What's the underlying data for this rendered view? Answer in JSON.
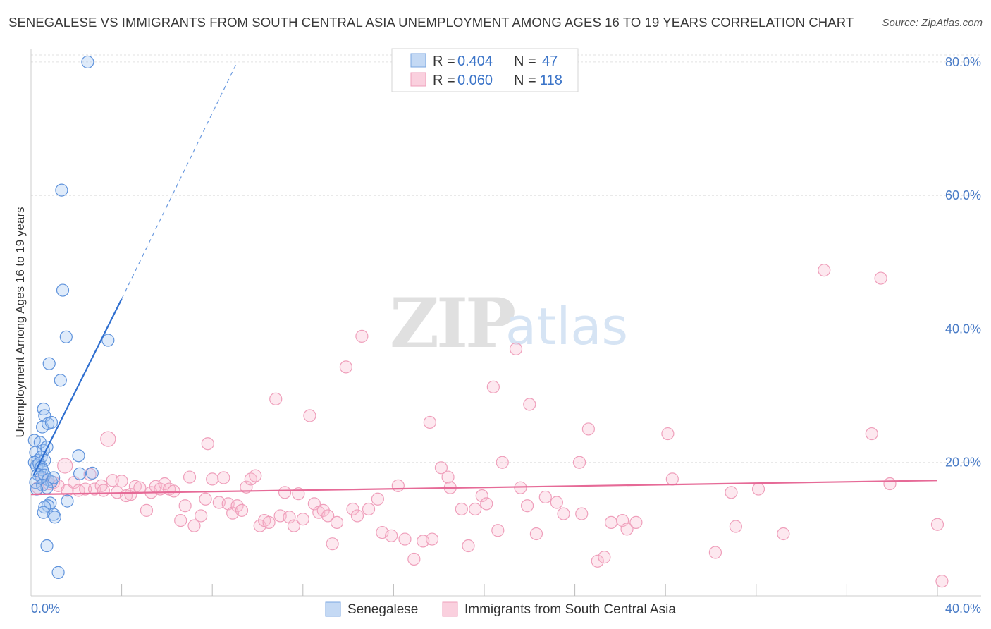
{
  "title": "SENEGALESE VS IMMIGRANTS FROM SOUTH CENTRAL ASIA UNEMPLOYMENT AMONG AGES 16 TO 19 YEARS CORRELATION CHART",
  "source": "Source: ZipAtlas.com",
  "watermark": {
    "zip": "ZIP",
    "atlas": "atlas"
  },
  "legend": {
    "r_label": "R =",
    "n_label": "N =",
    "rows": [
      {
        "r": "0.404",
        "n": "47"
      },
      {
        "r": "0.060",
        "n": "118"
      }
    ]
  },
  "chart_data": {
    "type": "scatter",
    "title": "SENEGALESE VS IMMIGRANTS FROM SOUTH CENTRAL ASIA UNEMPLOYMENT AMONG AGES 16 TO 19 YEARS CORRELATION CHART",
    "xlabel": "",
    "ylabel": "Unemployment Among Ages 16 to 19 years",
    "xlim": [
      0,
      40
    ],
    "ylim": [
      0,
      82
    ],
    "x_tick_labels": [
      "0.0%",
      "40.0%"
    ],
    "y_ticks": [
      20,
      40,
      60,
      80
    ],
    "y_tick_labels": [
      "20.0%",
      "40.0%",
      "60.0%",
      "80.0%"
    ],
    "grid": true,
    "legend_placement": "top-center",
    "series": [
      {
        "name": "Senegalese",
        "color": "#6fa0e0",
        "stat_r": 0.404,
        "stat_n": 47,
        "trend": {
          "x0": 0.1,
          "y0": 18.0,
          "x1": 4.0,
          "y1": 44.5,
          "dash_to_x": 9.1,
          "dash_to_y": 80.0
        },
        "points": [
          [
            2.5,
            80.0
          ],
          [
            1.35,
            60.8
          ],
          [
            1.4,
            45.8
          ],
          [
            1.55,
            38.8
          ],
          [
            3.4,
            38.3
          ],
          [
            0.8,
            34.8
          ],
          [
            1.3,
            32.3
          ],
          [
            0.55,
            28.0
          ],
          [
            0.6,
            27.0
          ],
          [
            0.5,
            25.3
          ],
          [
            0.75,
            25.8
          ],
          [
            0.9,
            26.0
          ],
          [
            0.15,
            23.3
          ],
          [
            0.4,
            23.0
          ],
          [
            0.55,
            21.8
          ],
          [
            0.7,
            22.3
          ],
          [
            0.2,
            21.5
          ],
          [
            0.3,
            20.3
          ],
          [
            0.45,
            20.8
          ],
          [
            0.6,
            20.3
          ],
          [
            0.15,
            20.0
          ],
          [
            0.25,
            19.5
          ],
          [
            0.35,
            19.8
          ],
          [
            0.45,
            19.3
          ],
          [
            0.5,
            18.9
          ],
          [
            0.3,
            18.2
          ],
          [
            0.45,
            17.8
          ],
          [
            0.6,
            18.1
          ],
          [
            0.75,
            17.4
          ],
          [
            0.9,
            17.1
          ],
          [
            1.0,
            17.7
          ],
          [
            0.2,
            17.0
          ],
          [
            0.5,
            16.6
          ],
          [
            0.7,
            16.2
          ],
          [
            0.25,
            16.0
          ],
          [
            2.15,
            18.3
          ],
          [
            2.7,
            18.4
          ],
          [
            2.1,
            21.0
          ],
          [
            1.6,
            14.2
          ],
          [
            0.85,
            13.9
          ],
          [
            0.75,
            13.5
          ],
          [
            0.6,
            13.3
          ],
          [
            0.55,
            12.5
          ],
          [
            1.0,
            12.2
          ],
          [
            1.05,
            11.8
          ],
          [
            0.7,
            7.5
          ],
          [
            1.2,
            3.5
          ]
        ]
      },
      {
        "name": "Immigrants from South Central Asia",
        "color": "#f2a7c0",
        "stat_r": 0.06,
        "stat_n": 118,
        "trend": {
          "x0": 0.0,
          "y0": 15.2,
          "x1": 40.0,
          "y1": 17.3
        },
        "points": [
          [
            0.3,
            16.2
          ],
          [
            0.5,
            17.5
          ],
          [
            0.8,
            16.8
          ],
          [
            1.0,
            17.0
          ],
          [
            1.2,
            16.5
          ],
          [
            1.5,
            19.5
          ],
          [
            1.6,
            15.8
          ],
          [
            1.9,
            17.0
          ],
          [
            2.1,
            15.8
          ],
          [
            2.4,
            16.0
          ],
          [
            2.6,
            18.2
          ],
          [
            2.8,
            16.0
          ],
          [
            3.1,
            16.5
          ],
          [
            3.2,
            15.8
          ],
          [
            3.4,
            23.5
          ],
          [
            3.6,
            17.3
          ],
          [
            3.8,
            15.5
          ],
          [
            4.0,
            17.2
          ],
          [
            4.2,
            15.0
          ],
          [
            4.4,
            15.2
          ],
          [
            4.6,
            16.4
          ],
          [
            4.8,
            16.2
          ],
          [
            5.1,
            12.8
          ],
          [
            5.3,
            15.5
          ],
          [
            5.5,
            16.4
          ],
          [
            5.7,
            16.0
          ],
          [
            5.9,
            16.8
          ],
          [
            6.1,
            16.0
          ],
          [
            6.3,
            15.7
          ],
          [
            6.6,
            11.3
          ],
          [
            6.8,
            13.5
          ],
          [
            7.0,
            17.8
          ],
          [
            7.2,
            10.5
          ],
          [
            7.5,
            12.0
          ],
          [
            7.7,
            14.5
          ],
          [
            7.8,
            22.8
          ],
          [
            8.0,
            17.5
          ],
          [
            8.3,
            14.0
          ],
          [
            8.5,
            17.7
          ],
          [
            8.7,
            13.8
          ],
          [
            8.9,
            12.4
          ],
          [
            9.1,
            13.5
          ],
          [
            9.3,
            12.8
          ],
          [
            9.5,
            16.3
          ],
          [
            9.7,
            17.5
          ],
          [
            9.9,
            18.0
          ],
          [
            10.1,
            10.5
          ],
          [
            10.3,
            11.3
          ],
          [
            10.5,
            11.0
          ],
          [
            10.8,
            29.5
          ],
          [
            11.0,
            12.0
          ],
          [
            11.2,
            15.5
          ],
          [
            11.4,
            11.8
          ],
          [
            11.6,
            10.5
          ],
          [
            11.8,
            15.3
          ],
          [
            12.0,
            11.5
          ],
          [
            12.3,
            27.0
          ],
          [
            12.5,
            13.8
          ],
          [
            12.7,
            12.5
          ],
          [
            12.9,
            12.8
          ],
          [
            13.1,
            12.0
          ],
          [
            13.3,
            7.8
          ],
          [
            13.5,
            11.0
          ],
          [
            13.9,
            34.3
          ],
          [
            14.2,
            13.0
          ],
          [
            14.4,
            12.0
          ],
          [
            14.6,
            38.9
          ],
          [
            14.9,
            13.0
          ],
          [
            15.3,
            14.5
          ],
          [
            15.5,
            9.5
          ],
          [
            15.9,
            9.0
          ],
          [
            16.2,
            16.5
          ],
          [
            16.5,
            8.5
          ],
          [
            16.9,
            5.5
          ],
          [
            17.3,
            8.2
          ],
          [
            17.6,
            26.0
          ],
          [
            17.7,
            8.5
          ],
          [
            18.1,
            19.2
          ],
          [
            18.4,
            17.8
          ],
          [
            18.5,
            16.2
          ],
          [
            19.0,
            13.0
          ],
          [
            19.3,
            7.5
          ],
          [
            19.6,
            13.0
          ],
          [
            19.9,
            15.0
          ],
          [
            20.1,
            13.8
          ],
          [
            20.4,
            31.3
          ],
          [
            20.6,
            9.8
          ],
          [
            20.8,
            20.0
          ],
          [
            21.4,
            37.0
          ],
          [
            21.6,
            16.2
          ],
          [
            21.9,
            13.5
          ],
          [
            22.0,
            28.7
          ],
          [
            22.3,
            9.3
          ],
          [
            22.7,
            14.8
          ],
          [
            23.2,
            14.0
          ],
          [
            23.5,
            12.3
          ],
          [
            24.2,
            20.0
          ],
          [
            24.3,
            12.3
          ],
          [
            24.6,
            25.0
          ],
          [
            25.0,
            5.2
          ],
          [
            25.3,
            5.8
          ],
          [
            25.6,
            11.0
          ],
          [
            26.1,
            11.3
          ],
          [
            26.3,
            10.0
          ],
          [
            26.7,
            11.0
          ],
          [
            28.1,
            24.3
          ],
          [
            28.3,
            17.5
          ],
          [
            30.2,
            6.5
          ],
          [
            31.1,
            10.4
          ],
          [
            32.1,
            16.0
          ],
          [
            33.2,
            9.3
          ],
          [
            35.0,
            48.8
          ],
          [
            37.1,
            24.3
          ],
          [
            37.5,
            47.6
          ],
          [
            37.9,
            16.8
          ],
          [
            40.0,
            10.7
          ],
          [
            40.2,
            2.2
          ],
          [
            30.9,
            15.5
          ]
        ]
      }
    ]
  }
}
